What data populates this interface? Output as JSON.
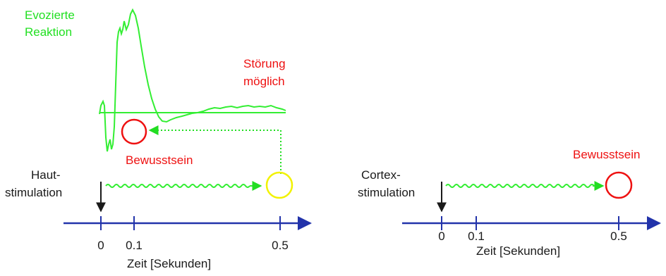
{
  "colors": {
    "axis": "#2233aa",
    "text": "#1a1a1a",
    "response": "#33ee33",
    "consciousness": "#ee1111",
    "endpoint": "#f2f200",
    "feedback": "#22dd22"
  },
  "left_panel": {
    "response_label_line1": "Evozierte",
    "response_label_line2": "Reaktion",
    "interference_line1": "Störung",
    "interference_line2": "möglich",
    "consciousness_label": "Bewusstsein",
    "stimulus_line1": "Haut-",
    "stimulus_line2": "stimulation",
    "ticks": [
      "0",
      "0.1",
      "0.5"
    ],
    "axis_label": "Zeit [Sekunden]"
  },
  "right_panel": {
    "consciousness_label": "Bewusstsein",
    "stimulus_line1": "Cortex-",
    "stimulus_line2": "stimulation",
    "ticks": [
      "0",
      "0.1",
      "0.5"
    ],
    "axis_label": "Zeit [Sekunden]"
  }
}
